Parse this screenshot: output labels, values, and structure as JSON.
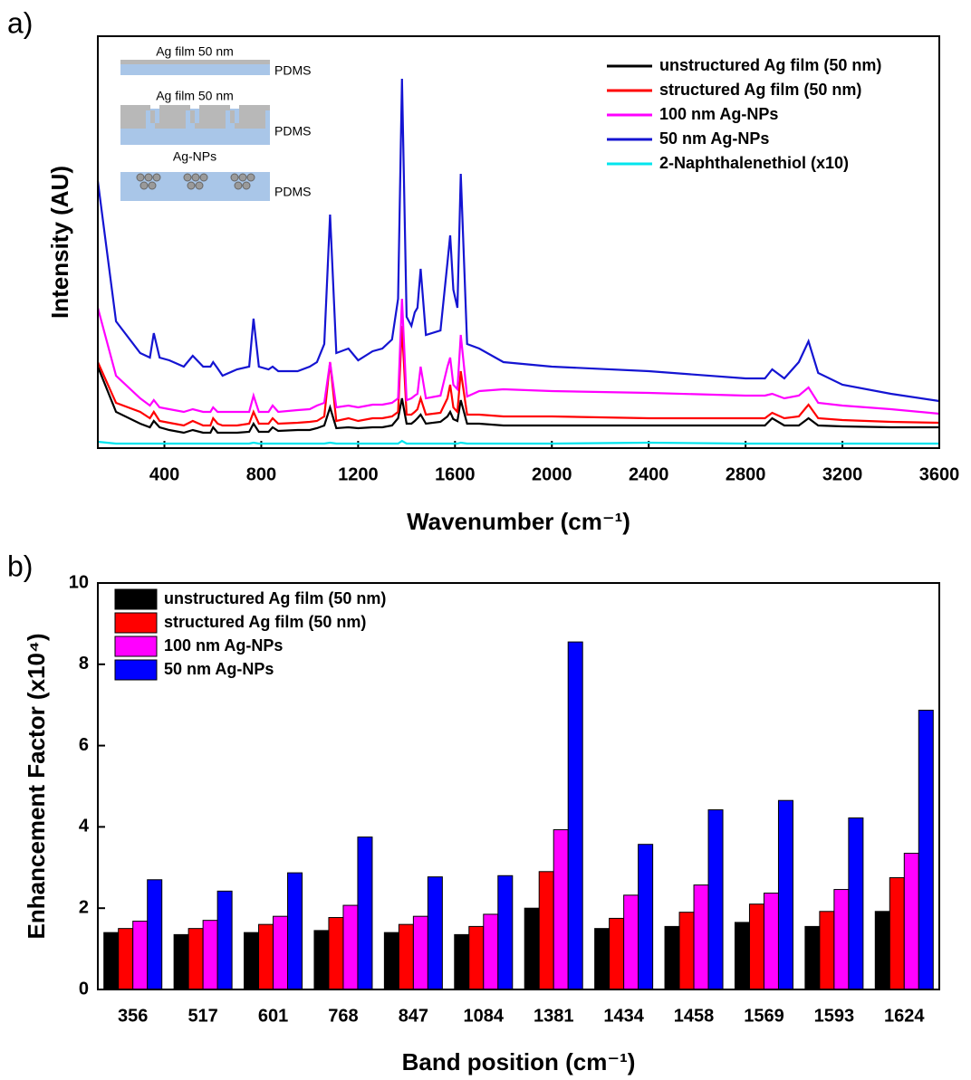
{
  "chart_data": [
    {
      "type": "line",
      "panel_label": "a)",
      "x_label": "Wavenumber (cm⁻¹)",
      "y_label": "Intensity (AU)",
      "xlim": [
        125,
        3600
      ],
      "xticks": [
        400,
        800,
        1200,
        1600,
        2000,
        2400,
        2800,
        3200,
        3600
      ],
      "ylim": [
        0,
        45.5
      ],
      "legend": "upper right",
      "annotations": [
        "Ag film 50 nm",
        "PDMS",
        "Ag film 50 nm",
        "PDMS",
        "Ag-NPs",
        "PDMS"
      ],
      "x": [
        125,
        200,
        300,
        340,
        356,
        380,
        420,
        480,
        517,
        560,
        590,
        601,
        620,
        640,
        700,
        750,
        768,
        790,
        830,
        847,
        870,
        950,
        1000,
        1030,
        1060,
        1084,
        1110,
        1160,
        1200,
        1260,
        1300,
        1340,
        1365,
        1381,
        1400,
        1420,
        1434,
        1445,
        1458,
        1480,
        1540,
        1569,
        1580,
        1593,
        1610,
        1624,
        1650,
        1700,
        1800,
        2000,
        2400,
        2800,
        2880,
        2910,
        2960,
        3020,
        3060,
        3100,
        3200,
        3400,
        3600
      ],
      "series": [
        {
          "name": "unstructured Ag film (50 nm)",
          "color": "#000000",
          "values": [
            9.0,
            4.0,
            2.7,
            2.3,
            3.0,
            2.3,
            2.0,
            1.7,
            2.0,
            1.7,
            1.7,
            2.3,
            1.7,
            1.7,
            1.7,
            1.8,
            2.7,
            1.8,
            1.8,
            2.3,
            1.9,
            2.0,
            2.0,
            2.2,
            2.5,
            4.5,
            2.2,
            2.3,
            2.2,
            2.3,
            2.3,
            2.5,
            3.3,
            5.5,
            2.7,
            2.7,
            3.0,
            3.3,
            3.7,
            2.7,
            2.9,
            3.5,
            4.0,
            3.2,
            3.0,
            5.3,
            2.7,
            2.7,
            2.5,
            2.5,
            2.5,
            2.5,
            2.5,
            3.3,
            2.5,
            2.5,
            3.3,
            2.5,
            2.4,
            2.3,
            2.3
          ]
        },
        {
          "name": "structured Ag film (50 nm)",
          "color": "#ff0000",
          "values": [
            9.5,
            5.0,
            4.0,
            3.3,
            4.0,
            3.0,
            2.8,
            2.5,
            3.0,
            2.5,
            2.5,
            3.3,
            2.7,
            2.5,
            2.5,
            2.7,
            4.0,
            2.7,
            2.7,
            3.3,
            2.7,
            2.8,
            2.9,
            3.0,
            3.5,
            9.5,
            3.0,
            3.3,
            3.0,
            3.3,
            3.3,
            3.5,
            4.0,
            13.5,
            3.7,
            3.7,
            4.0,
            4.3,
            5.5,
            3.7,
            3.9,
            5.5,
            7.0,
            4.5,
            4.0,
            8.5,
            3.7,
            3.7,
            3.5,
            3.5,
            3.3,
            3.3,
            3.3,
            3.9,
            3.3,
            3.5,
            4.8,
            3.3,
            3.1,
            2.9,
            2.8
          ]
        },
        {
          "name": "100 nm Ag-NPs",
          "color": "#ff00ff",
          "values": [
            15.5,
            8.0,
            5.5,
            4.7,
            5.3,
            4.5,
            4.3,
            4.0,
            4.3,
            4.0,
            4.0,
            4.5,
            4.0,
            4.0,
            4.0,
            4.0,
            5.8,
            4.0,
            4.0,
            4.7,
            4.0,
            4.2,
            4.3,
            4.7,
            5.0,
            9.5,
            4.5,
            4.7,
            4.5,
            4.8,
            4.8,
            5.0,
            5.5,
            16.5,
            5.3,
            5.5,
            5.8,
            6.0,
            9.0,
            5.5,
            5.8,
            9.0,
            10.0,
            7.0,
            6.5,
            12.5,
            5.7,
            6.3,
            6.5,
            6.3,
            6.1,
            5.8,
            5.8,
            6.0,
            5.5,
            5.8,
            6.7,
            5.0,
            4.7,
            4.3,
            3.8
          ]
        },
        {
          "name": "50 nm Ag-NPs",
          "color": "#1414d2",
          "values": [
            29.5,
            14.0,
            10.5,
            10.0,
            12.7,
            10.0,
            9.7,
            9.0,
            10.2,
            9.0,
            9.0,
            9.5,
            8.8,
            8.0,
            8.7,
            9.0,
            14.3,
            9.0,
            8.7,
            9.0,
            8.5,
            8.5,
            9.0,
            9.5,
            11.5,
            25.8,
            10.5,
            11.0,
            9.7,
            10.7,
            11.0,
            12.0,
            16.5,
            40.8,
            14.5,
            13.5,
            15.0,
            15.5,
            19.8,
            12.5,
            13.0,
            20.5,
            23.5,
            17.5,
            15.5,
            30.3,
            11.5,
            11.0,
            9.5,
            9.0,
            8.5,
            7.7,
            7.7,
            8.7,
            7.7,
            9.5,
            11.8,
            8.3,
            7.0,
            6.0,
            5.2
          ]
        },
        {
          "name": "2-Naphthalenethiol  (x10)",
          "color": "#00e5ee",
          "values": [
            0.7,
            0.5,
            0.5,
            0.5,
            0.5,
            0.5,
            0.5,
            0.5,
            0.5,
            0.5,
            0.5,
            0.5,
            0.5,
            0.5,
            0.5,
            0.5,
            0.6,
            0.5,
            0.5,
            0.5,
            0.5,
            0.5,
            0.5,
            0.5,
            0.5,
            0.6,
            0.5,
            0.5,
            0.5,
            0.5,
            0.5,
            0.5,
            0.5,
            0.8,
            0.5,
            0.5,
            0.5,
            0.5,
            0.5,
            0.5,
            0.5,
            0.5,
            0.5,
            0.5,
            0.5,
            0.6,
            0.5,
            0.5,
            0.5,
            0.5,
            0.6,
            0.5,
            0.5,
            0.5,
            0.5,
            0.5,
            0.5,
            0.5,
            0.5,
            0.5,
            0.5
          ]
        }
      ]
    },
    {
      "type": "bar",
      "panel_label": "b)",
      "x_label": "Band position (cm⁻¹)",
      "y_label": "Enhancement Factor (x10⁴)",
      "ylim": [
        0,
        10
      ],
      "yticks": [
        0,
        2,
        4,
        6,
        8,
        10
      ],
      "legend": "upper left",
      "categories": [
        "356",
        "517",
        "601",
        "768",
        "847",
        "1084",
        "1381",
        "1434",
        "1458",
        "1569",
        "1593",
        "1624"
      ],
      "series": [
        {
          "name": "unstructured Ag film (50 nm)",
          "color": "#000000",
          "values": [
            1.4,
            1.35,
            1.4,
            1.45,
            1.4,
            1.35,
            2.0,
            1.5,
            1.55,
            1.65,
            1.55,
            1.92
          ]
        },
        {
          "name": "structured Ag film (50 nm)",
          "color": "#ff0000",
          "values": [
            1.5,
            1.5,
            1.6,
            1.77,
            1.6,
            1.55,
            2.9,
            1.75,
            1.9,
            2.1,
            1.92,
            2.75
          ]
        },
        {
          "name": "100 nm Ag-NPs",
          "color": "#ff00ff",
          "values": [
            1.68,
            1.7,
            1.8,
            2.07,
            1.8,
            1.85,
            3.93,
            2.32,
            2.57,
            2.37,
            2.46,
            3.35
          ]
        },
        {
          "name": "50 nm Ag-NPs",
          "color": "#0000ff",
          "values": [
            2.7,
            2.42,
            2.87,
            3.75,
            2.77,
            2.8,
            8.55,
            3.57,
            4.42,
            4.65,
            4.22,
            6.87
          ]
        }
      ]
    }
  ]
}
